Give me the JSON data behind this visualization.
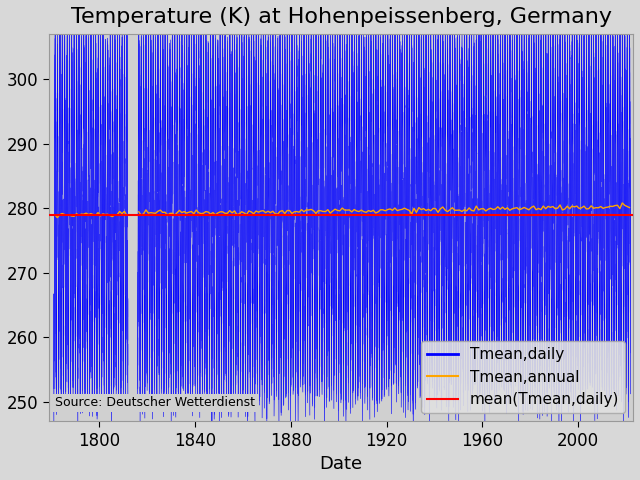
{
  "title": "Temperature (K) at Hohenpeissenberg, Germany",
  "xlabel": "Date",
  "ylabel": "",
  "source_text": "Source: Deutscher Wetterdienst",
  "year_start": 1781,
  "year_end": 2022,
  "overall_mean": 279.0,
  "ylim_bottom": 247,
  "ylim_top": 307,
  "yticks": [
    250,
    260,
    270,
    280,
    290,
    300
  ],
  "xticks": [
    1800,
    1840,
    1880,
    1920,
    1960,
    2000
  ],
  "bg_color": "#d8d8d8",
  "axes_bg_color": "#d0d0d0",
  "daily_color": "#0000ff",
  "annual_color": "#ffa500",
  "mean_color": "#ff0000",
  "legend_labels": [
    "Tmean,daily",
    "Tmean,annual",
    "mean(Tmean,daily)"
  ],
  "title_fontsize": 16,
  "label_fontsize": 13,
  "tick_fontsize": 12,
  "legend_fontsize": 11,
  "seasonal_amplitude": 22.0,
  "noise_std": 4.0,
  "warming_trend": 1.2,
  "gap_start": 1812,
  "gap_end": 1816
}
